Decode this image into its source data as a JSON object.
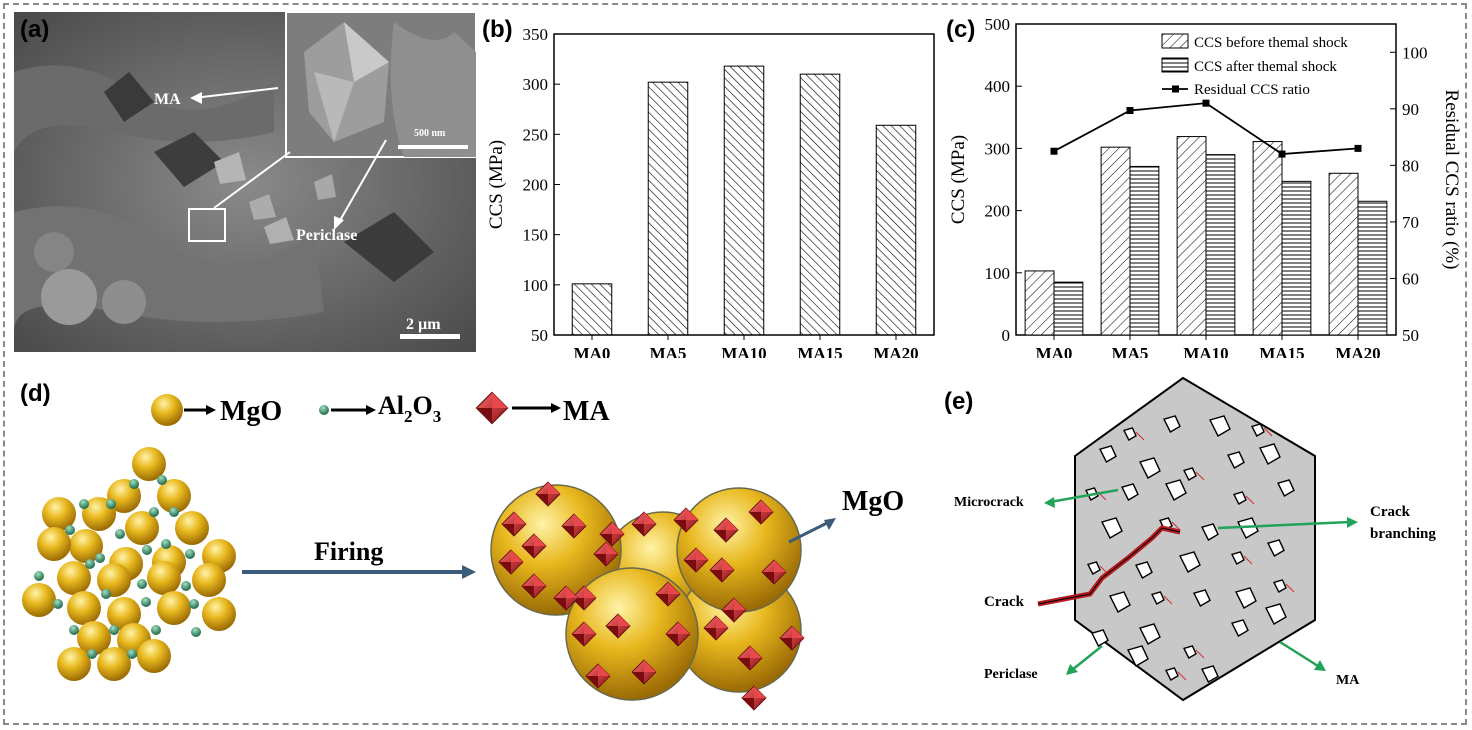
{
  "panels": {
    "a": {
      "label": "(a)",
      "annotations": {
        "ma": "MA",
        "periclase": "Periclase",
        "inset_scale": "500 nm",
        "scale": "2 µm"
      }
    },
    "b": {
      "label": "(b)"
    },
    "c": {
      "label": "(c)"
    },
    "d": {
      "label": "(d)",
      "legend": {
        "mgo": "MgO",
        "al2o3_main": "Al",
        "al2o3_sub1": "2",
        "al2o3_o": "O",
        "al2o3_sub2": "3",
        "ma": "MA"
      },
      "firing": "Firing",
      "mgo_arrow_label": "MgO"
    },
    "e": {
      "label": "(e)",
      "labels": {
        "microcrack": "Microcrack",
        "crack_branching_1": "Crack",
        "crack_branching_2": "branching",
        "crack": "Crack",
        "periclase": "Periclase",
        "ma": "MA"
      }
    }
  },
  "colors": {
    "gold": "#e0b020",
    "red": "#c0272d",
    "arrow_green": "#22a35a",
    "arrow_blue": "#3b5c7a",
    "grey_bg": "#c8c8c8"
  },
  "chart_data": [
    {
      "id": "b",
      "type": "bar",
      "categories": [
        "MA0",
        "MA5",
        "MA10",
        "MA15",
        "MA20"
      ],
      "values": [
        101,
        302,
        318,
        310,
        259
      ],
      "ylabel": "CCS (MPa)",
      "ylim": [
        50,
        350
      ],
      "yticks": [
        50,
        100,
        150,
        200,
        250,
        300,
        350
      ],
      "grid": false
    },
    {
      "id": "c",
      "type": "bar",
      "categories": [
        "MA0",
        "MA5",
        "MA10",
        "MA15",
        "MA20"
      ],
      "series": [
        {
          "name": "CCS before themal shock",
          "values": [
            103,
            302,
            319,
            311,
            260
          ],
          "pattern": "diagonal"
        },
        {
          "name": "CCS after themal shock",
          "values": [
            85,
            271,
            290,
            247,
            215
          ],
          "pattern": "horizontal"
        },
        {
          "name": "Residual CCS ratio",
          "type": "line",
          "axis": "right",
          "values": [
            82.5,
            89.7,
            91.0,
            82.0,
            83.0
          ]
        }
      ],
      "ylabel": "CCS (MPa)",
      "ylim": [
        0,
        500
      ],
      "yticks": [
        0,
        100,
        200,
        300,
        400,
        500
      ],
      "y2label": "Residual CCS ratio (%)",
      "y2lim": [
        50,
        105
      ],
      "y2ticks": [
        50,
        60,
        70,
        80,
        90,
        100
      ],
      "legend_position": "top-right",
      "grid": false
    }
  ]
}
